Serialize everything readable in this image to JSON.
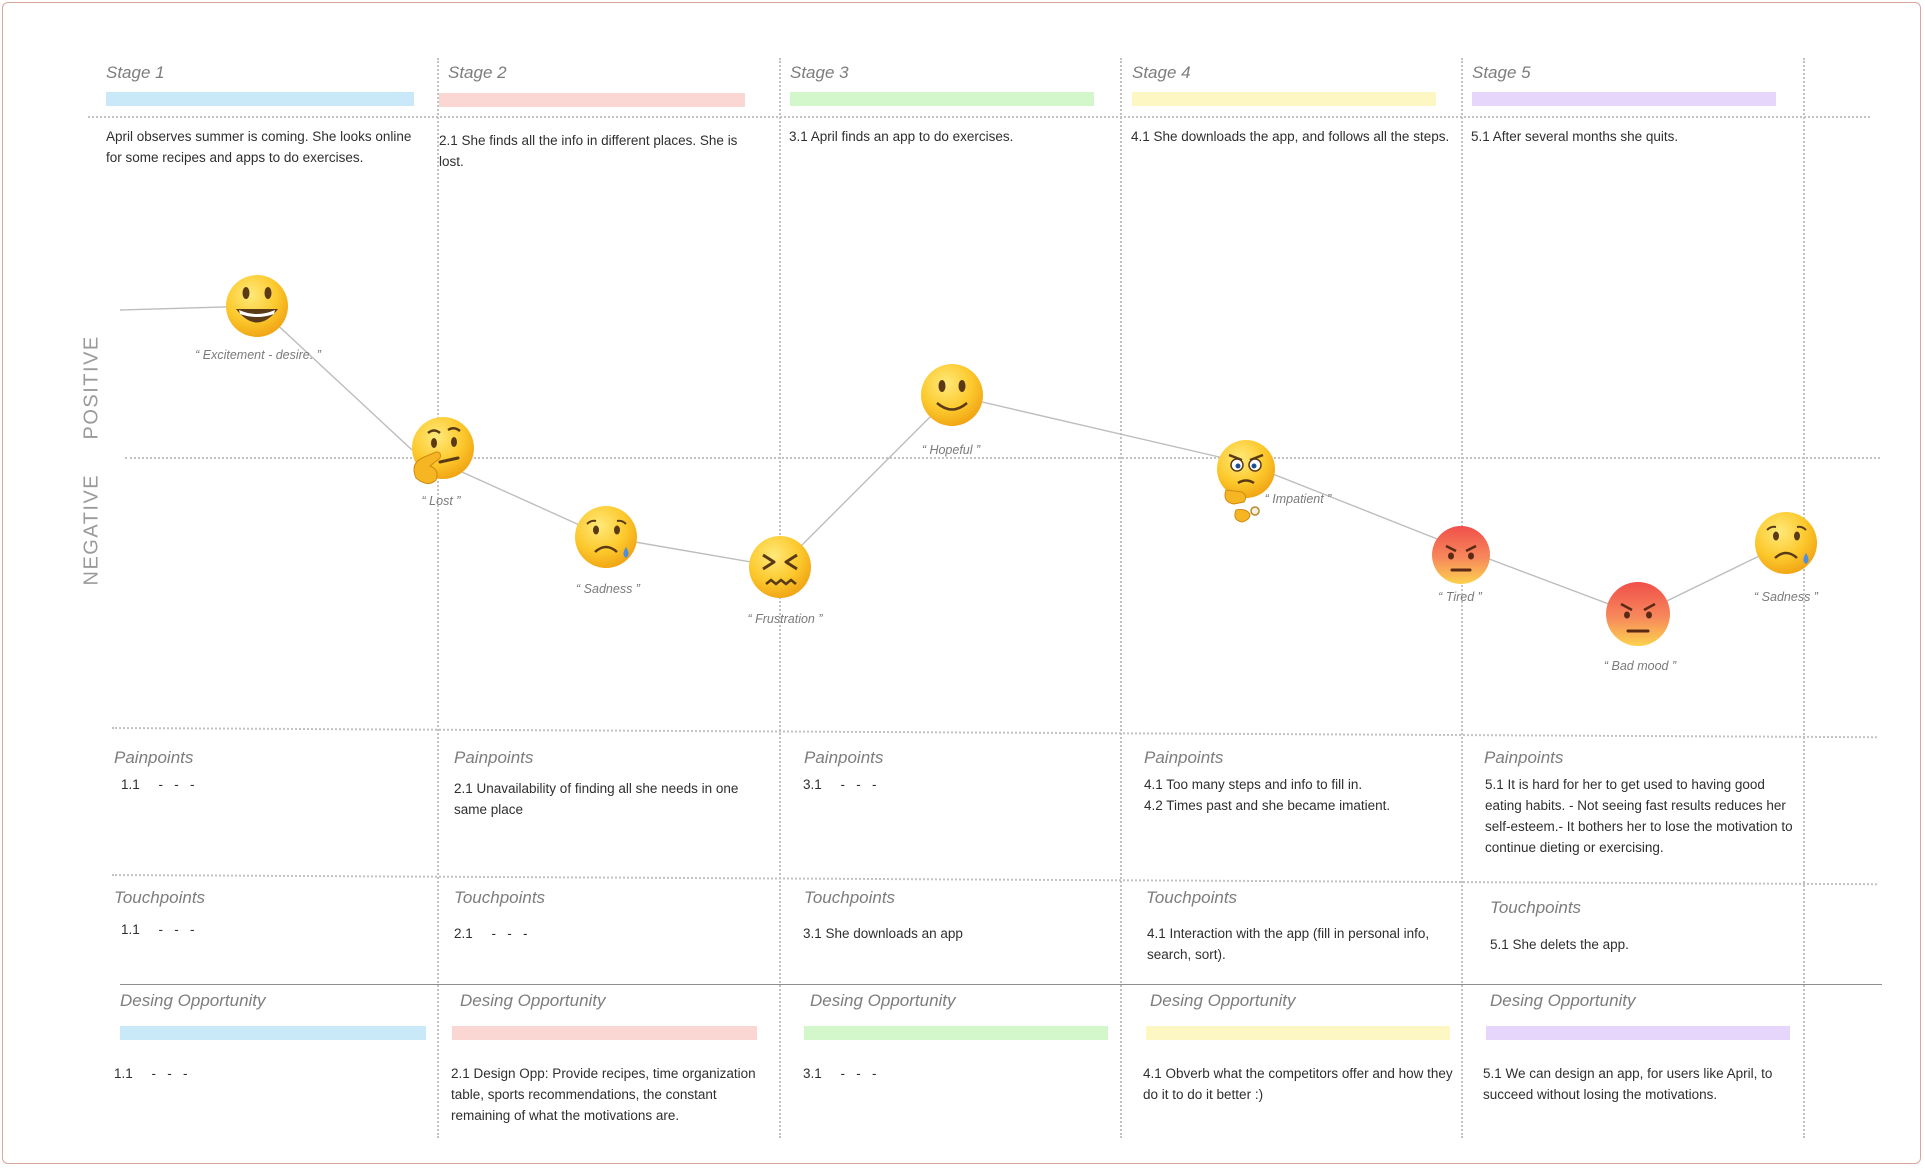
{
  "axis": {
    "positive": "POSITIVE",
    "negative": "NEGATIVE"
  },
  "colors": [
    "#c9e8f8",
    "#fbd7d3",
    "#d3f7cb",
    "#fdf7c3",
    "#e7d6fb"
  ],
  "stages": [
    {
      "title": "Stage 1",
      "description": "April observes summer is coming. She looks online for some recipes and apps to do exercises.",
      "painpoints": [
        "1.1     -   -   -"
      ],
      "touchpoints": [
        "1.1     -   -   -"
      ],
      "opportunity": [
        "1.1     -   -   -"
      ]
    },
    {
      "title": "Stage 2",
      "description": "2.1 She finds all the info in different places. She is lost.",
      "painpoints": [
        "2.1 Unavailability of finding all she needs in one same place"
      ],
      "touchpoints": [
        "2.1     -   -   -"
      ],
      "opportunity": [
        "2.1 Design Opp: Provide recipes, time organization table, sports recommendations, the constant remaining of what the motivations are."
      ]
    },
    {
      "title": "Stage 3",
      "description": "3.1 April finds an app to do exercises.",
      "painpoints": [
        "3.1     -   -   -"
      ],
      "touchpoints": [
        "3.1 She downloads an app"
      ],
      "opportunity": [
        "3.1     -   -   -"
      ]
    },
    {
      "title": "Stage 4",
      "description": "4.1 She downloads the app, and follows all the steps.",
      "painpoints": [
        "4.1 Too many steps and info to fill in.",
        "4.2 Times past and she became imatient."
      ],
      "touchpoints": [
        "4.1 Interaction with the app (fill in personal info, search, sort)."
      ],
      "opportunity": [
        "4.1 Obverb what the competitors offer and how they do it to do it better :)"
      ]
    },
    {
      "title": "Stage 5",
      "description": "5.1 After several months she quits.",
      "painpoints": [
        "5.1 It is hard for her to get used to having good eating habits. - Not seeing fast results reduces her self-esteem.-  It bothers her to lose the motivation to continue dieting or exercising."
      ],
      "touchpoints": [
        "5.1 She delets the app."
      ],
      "opportunity": [
        "5.1 We can design an app, for users like April, to succeed without losing the motivations."
      ]
    }
  ],
  "section_labels": {
    "painpoints": "Painpoints",
    "touchpoints": "Touchpoints",
    "opportunity": "Desing Opportunity"
  },
  "emotions": [
    {
      "label": "“ Excitement - desire. ”",
      "type": "grin"
    },
    {
      "label": "“ Lost ”",
      "type": "thinking"
    },
    {
      "label": "“ Sadness ”",
      "type": "sad-tear"
    },
    {
      "label": "“ Frustration ”",
      "type": "frustrated"
    },
    {
      "label": "“ Hopeful ”",
      "type": "smile"
    },
    {
      "label": "“ Impatient ”",
      "type": "impatient"
    },
    {
      "label": "“ Tired ”",
      "type": "angry-red"
    },
    {
      "label": "“ Bad mood ”",
      "type": "angry-red"
    },
    {
      "label": "“ Sadness ”",
      "type": "sad-tear"
    }
  ]
}
